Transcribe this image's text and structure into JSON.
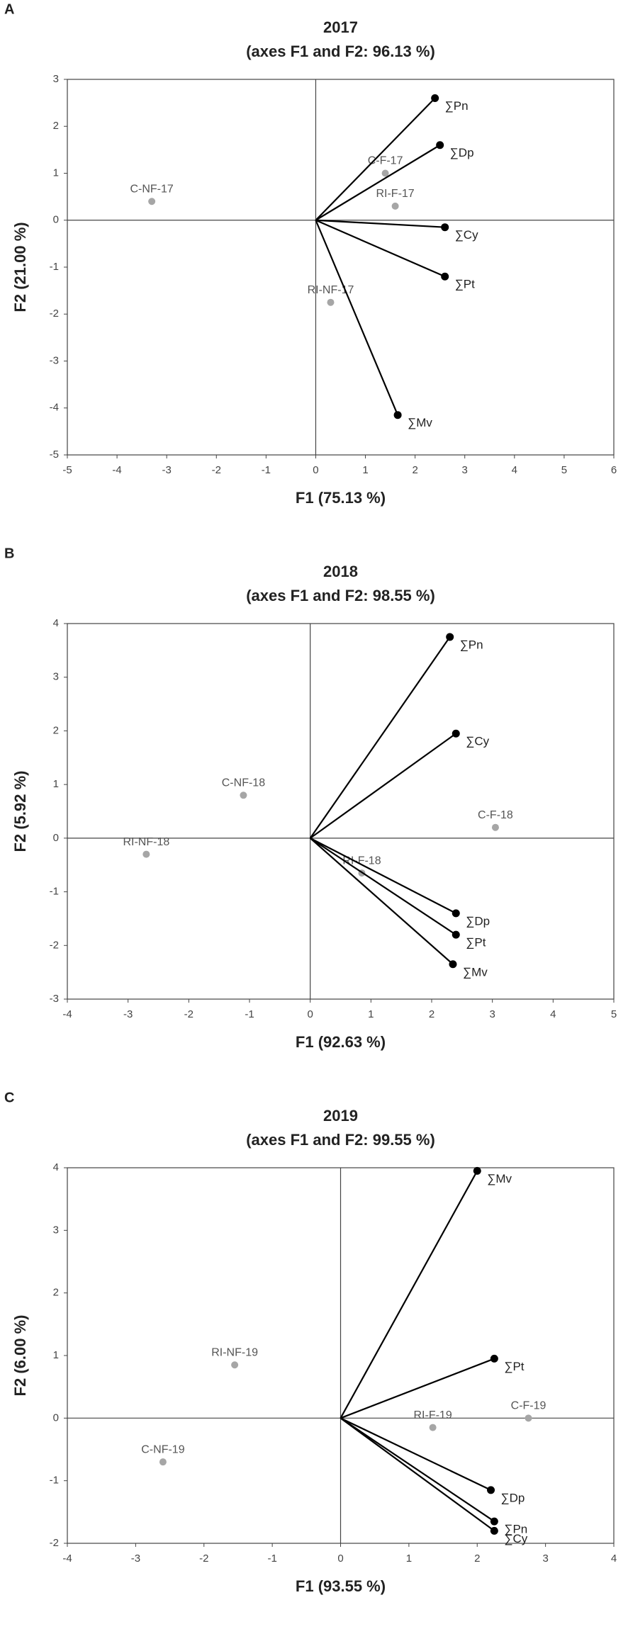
{
  "chart_data": [
    {
      "type": "biplot",
      "panel": "A",
      "title": "2017",
      "subtitle": "(axes F1 and F2: 96.13 %)",
      "x_label": "F1 (75.13 %)",
      "y_label": "F2 (21.00 %)",
      "xlim": [
        -5,
        6
      ],
      "xticks": [
        -5,
        -4,
        -3,
        -2,
        -1,
        0,
        1,
        2,
        3,
        4,
        5,
        6
      ],
      "ylim": [
        -5,
        3
      ],
      "yticks": [
        -5,
        -4,
        -3,
        -2,
        -1,
        0,
        1,
        2,
        3
      ],
      "vectors": {
        "color": "#000000",
        "labels": [
          "∑Pn",
          "∑Dp",
          "∑Cy",
          "∑Pt",
          "∑Mv"
        ],
        "x": [
          2.4,
          2.5,
          2.6,
          2.6,
          1.65
        ],
        "y": [
          2.6,
          1.6,
          -0.15,
          -1.2,
          -4.15
        ]
      },
      "observations": {
        "color": "#a6a6a6",
        "labels": [
          "C-NF-17",
          "C-F-17",
          "RI-F-17",
          "RI-NF-17"
        ],
        "x": [
          -3.3,
          1.4,
          1.6,
          0.3
        ],
        "y": [
          0.4,
          1.0,
          0.3,
          -1.75
        ]
      }
    },
    {
      "type": "biplot",
      "panel": "B",
      "title": "2018",
      "subtitle": "(axes F1 and F2: 98.55 %)",
      "x_label": "F1 (92.63 %)",
      "y_label": "F2 (5.92 %)",
      "xlim": [
        -4,
        5
      ],
      "xticks": [
        -4,
        -3,
        -2,
        -1,
        0,
        1,
        2,
        3,
        4,
        5
      ],
      "ylim": [
        -3,
        4
      ],
      "yticks": [
        -3,
        -2,
        -1,
        0,
        1,
        2,
        3,
        4
      ],
      "vectors": {
        "color": "#000000",
        "labels": [
          "∑Pn",
          "∑Cy",
          "∑Dp",
          "∑Pt",
          "∑Mv"
        ],
        "x": [
          2.3,
          2.4,
          2.4,
          2.4,
          2.35
        ],
        "y": [
          3.75,
          1.95,
          -1.4,
          -1.8,
          -2.35
        ]
      },
      "observations": {
        "color": "#a6a6a6",
        "labels": [
          "C-NF-18",
          "C-F-18",
          "RI-NF-18",
          "RI-F-18"
        ],
        "x": [
          -1.1,
          3.05,
          -2.7,
          0.85
        ],
        "y": [
          0.8,
          0.2,
          -0.3,
          -0.65
        ]
      }
    },
    {
      "type": "biplot",
      "panel": "C",
      "title": "2019",
      "subtitle": "(axes F1 and F2: 99.55 %)",
      "x_label": "F1 (93.55 %)",
      "y_label": "F2 (6.00 %)",
      "xlim": [
        -4,
        4
      ],
      "xticks": [
        -4,
        -3,
        -2,
        -1,
        0,
        1,
        2,
        3,
        4
      ],
      "ylim": [
        -2,
        4
      ],
      "yticks": [
        -2,
        -1,
        0,
        1,
        2,
        3,
        4
      ],
      "vectors": {
        "color": "#000000",
        "labels": [
          "∑Mv",
          "∑Pt",
          "∑Dp",
          "∑Pn",
          "∑Cy"
        ],
        "x": [
          2.0,
          2.25,
          2.2,
          2.25,
          2.25
        ],
        "y": [
          3.95,
          0.95,
          -1.15,
          -1.65,
          -1.8
        ]
      },
      "observations": {
        "color": "#a6a6a6",
        "labels": [
          "RI-NF-19",
          "C-NF-19",
          "RI-F-19",
          "C-F-19"
        ],
        "x": [
          -1.55,
          -2.6,
          1.35,
          2.75
        ],
        "y": [
          0.85,
          -0.7,
          -0.15,
          0
        ]
      }
    }
  ]
}
